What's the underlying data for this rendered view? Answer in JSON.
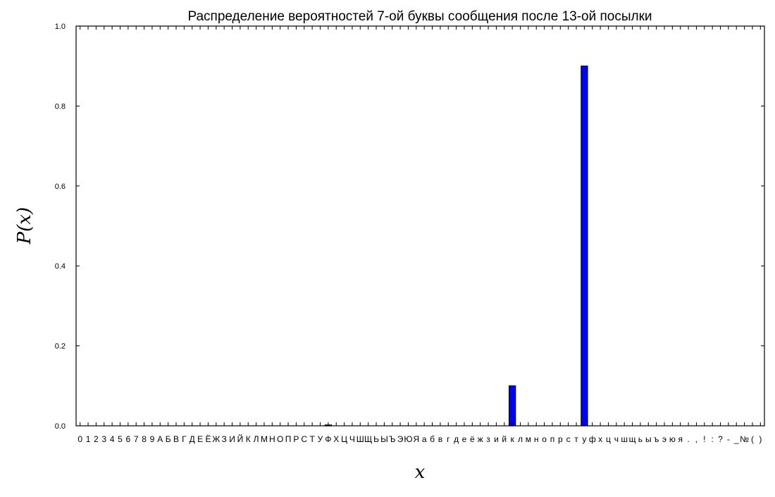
{
  "chart_data": {
    "type": "bar",
    "title": "Распределение вероятностей 7-ой буквы сообщения после 13-ой посылки",
    "xlabel": "x",
    "ylabel": "P(x)",
    "ylim": [
      0,
      1.0
    ],
    "yticks": [
      "0.0",
      "0.2",
      "0.4",
      "0.6",
      "0.8",
      "1.0"
    ],
    "ytick_values": [
      0,
      0.2,
      0.4,
      0.6,
      0.8,
      1.0
    ],
    "grid": false,
    "bar_color": "#0000ff",
    "categories": [
      "0",
      "1",
      "2",
      "3",
      "4",
      "5",
      "6",
      "7",
      "8",
      "9",
      "А",
      "Б",
      "В",
      "Г",
      "Д",
      "Е",
      "Ё",
      "Ж",
      "З",
      "И",
      "Й",
      "К",
      "Л",
      "М",
      "Н",
      "О",
      "П",
      "Р",
      "С",
      "Т",
      "У",
      "Ф",
      "Х",
      "Ц",
      "Ч",
      "Ш",
      "Щ",
      "Ь",
      "Ы",
      "Ъ",
      "Э",
      "Ю",
      "Я",
      "а",
      "б",
      "в",
      "г",
      "д",
      "е",
      "ё",
      "ж",
      "з",
      "и",
      "й",
      "к",
      "л",
      "м",
      "н",
      "о",
      "п",
      "р",
      "с",
      "т",
      "у",
      "ф",
      "х",
      "ц",
      "ч",
      "ш",
      "щ",
      "ь",
      "ы",
      "ъ",
      "э",
      "ю",
      "я",
      ".",
      ",",
      "!",
      ":",
      "?",
      "-",
      "_",
      "№",
      "(",
      ")"
    ],
    "values": [
      0,
      0,
      0,
      0,
      0,
      0,
      0,
      0,
      0,
      0,
      0,
      0,
      0,
      0,
      0,
      0,
      0,
      0,
      0,
      0,
      0,
      0,
      0,
      0,
      0,
      0,
      0,
      0,
      0,
      0,
      0,
      0.002,
      0,
      0,
      0,
      0,
      0,
      0,
      0,
      0,
      0,
      0,
      0,
      0,
      0,
      0,
      0,
      0,
      0,
      0,
      0,
      0,
      0,
      0,
      0.1,
      0,
      0,
      0,
      0,
      0,
      0,
      0,
      0,
      0.9,
      0,
      0,
      0,
      0,
      0,
      0,
      0,
      0,
      0,
      0,
      0,
      0,
      0,
      0,
      0,
      0,
      0,
      0,
      0,
      0,
      0,
      0
    ]
  }
}
